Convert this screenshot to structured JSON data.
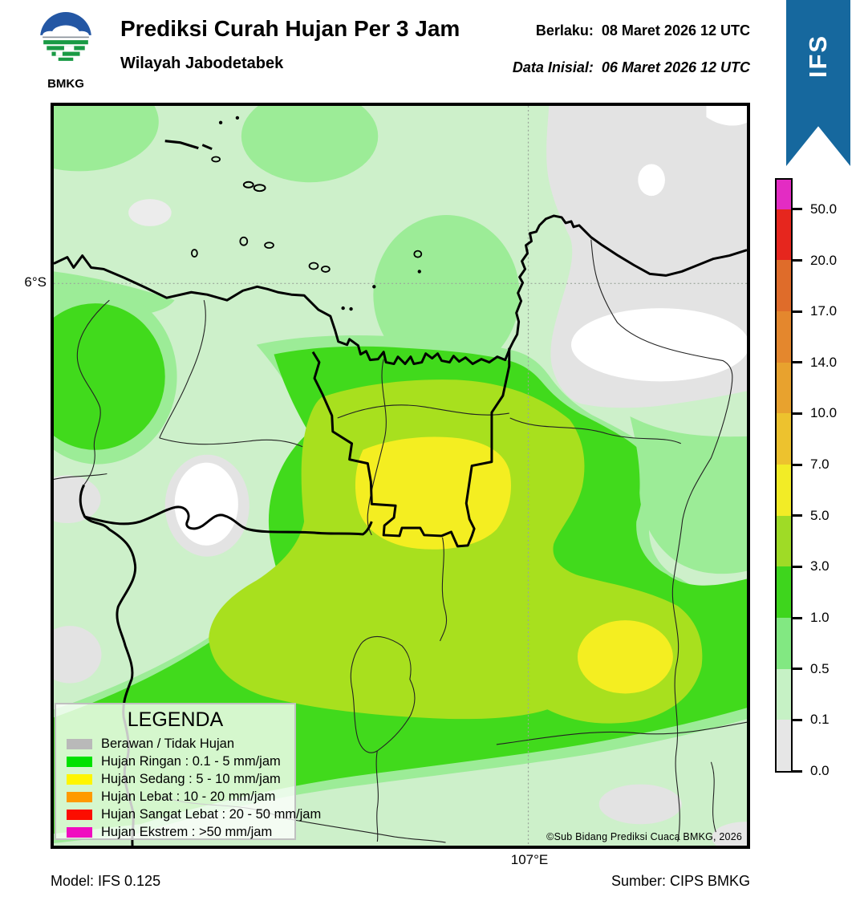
{
  "header": {
    "logo_text": "BMKG",
    "title": "Prediksi Curah Hujan Per 3 Jam",
    "subtitle": "Wilayah Jabodetabek",
    "valid_label": "Berlaku:",
    "valid_value": "08 Maret 2026 12 UTC",
    "init_label": "Data Inisial:",
    "init_value": "06 Maret 2026 12 UTC",
    "ribbon": "IFS",
    "ribbon_color": "#16689e"
  },
  "map": {
    "lat_label": "6°S",
    "lon_label": "107°E",
    "copyright": "©Sub Bidang Prediksi Cuaca BMKG, 2026",
    "palette": {
      "clear_gray": "#e3e3e3",
      "none_white": "#ffffff",
      "rain_01_05": "#cdf0ca",
      "rain_05_1": "#9cec97",
      "rain_1_3": "#41da1c",
      "rain_3_5": "#a8e01e",
      "rain_5_7": "#f4ee21"
    }
  },
  "colorbar": {
    "ticks": [
      "50.0",
      "20.0",
      "17.0",
      "14.0",
      "10.0",
      "7.0",
      "5.0",
      "3.0",
      "1.0",
      "0.5",
      "0.1",
      "0.0"
    ],
    "colors": [
      "#e32cc3",
      "#e6261e",
      "#df6c2a",
      "#e4872d",
      "#e8a22e",
      "#edc22e",
      "#f2ec26",
      "#9fdb26",
      "#3ed51d",
      "#82e882",
      "#c6f1c5",
      "#e6e6e6"
    ]
  },
  "legend": {
    "title": "LEGENDA",
    "items": [
      {
        "color": "#b9b9b9",
        "label": "Berawan / Tidak Hujan"
      },
      {
        "color": "#00e100",
        "label": "Hujan Ringan : 0.1 - 5 mm/jam"
      },
      {
        "color": "#fff500",
        "label": "Hujan Sedang : 5 - 10 mm/jam"
      },
      {
        "color": "#ff9a00",
        "label": "Hujan Lebat : 10 - 20 mm/jam"
      },
      {
        "color": "#fc0d00",
        "label": "Hujan Sangat Lebat : 20 - 50 mm/jam"
      },
      {
        "color": "#f00cc0",
        "label": "Hujan Ekstrem : >50 mm/jam"
      }
    ]
  },
  "footer": {
    "model": "Model: IFS 0.125",
    "source": "Sumber: CIPS BMKG"
  }
}
